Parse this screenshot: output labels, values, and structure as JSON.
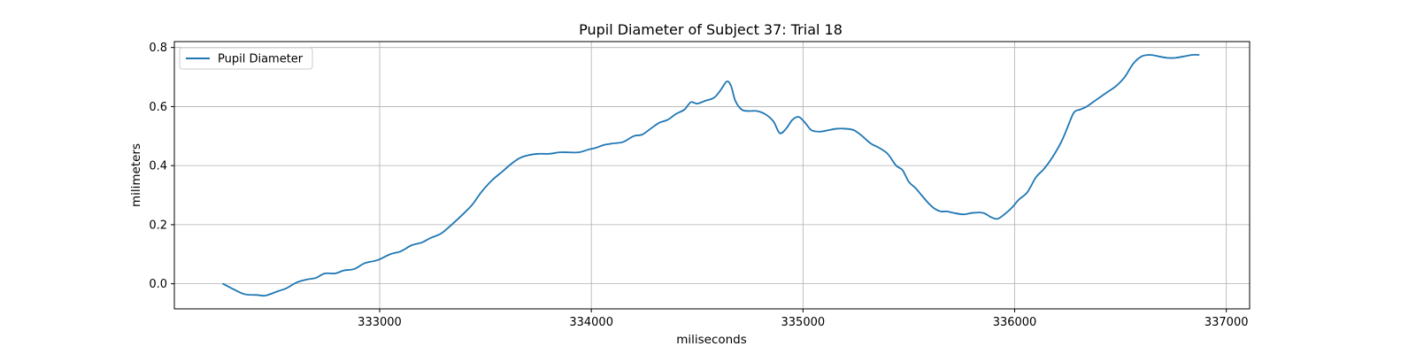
{
  "chart_data": {
    "type": "line",
    "title": "Pupil Diameter of Subject 37: Trial 18",
    "xlabel": "miliseconds",
    "ylabel": "milimeters",
    "xlim": [
      332030,
      337110
    ],
    "ylim": [
      -0.085,
      0.82
    ],
    "xticks": [
      333000,
      334000,
      335000,
      336000,
      337000
    ],
    "xtick_labels": [
      "333000",
      "334000",
      "335000",
      "336000",
      "337000"
    ],
    "yticks": [
      0.0,
      0.2,
      0.4,
      0.6,
      0.8
    ],
    "ytick_labels": [
      "0.0",
      "0.2",
      "0.4",
      "0.6",
      "0.8"
    ],
    "grid": true,
    "legend": "top-left",
    "series": [
      {
        "name": "Pupil Diameter",
        "color": "#1f77b4",
        "x": [
          332260,
          332300,
          332360,
          332420,
          332460,
          332520,
          332560,
          332610,
          332660,
          332700,
          332740,
          332790,
          332830,
          332880,
          332930,
          332990,
          333050,
          333100,
          333150,
          333200,
          333240,
          333290,
          333340,
          333400,
          333440,
          333480,
          333530,
          333580,
          333620,
          333660,
          333700,
          333750,
          333800,
          333850,
          333890,
          333940,
          333990,
          334020,
          334060,
          334100,
          334150,
          334200,
          334240,
          334280,
          334320,
          334360,
          334400,
          334440,
          334470,
          334500,
          334540,
          334580,
          334610,
          334640,
          334660,
          334680,
          334710,
          334740,
          334780,
          334820,
          334860,
          334890,
          334920,
          334950,
          334980,
          335010,
          335040,
          335080,
          335120,
          335160,
          335200,
          335240,
          335280,
          335320,
          335360,
          335400,
          335440,
          335470,
          335500,
          335530,
          335560,
          335590,
          335620,
          335650,
          335680,
          335710,
          335760,
          335800,
          335850,
          335890,
          335920,
          335960,
          335990,
          336020,
          336060,
          336100,
          336140,
          336180,
          336220,
          336250,
          336280,
          336310,
          336340,
          336370,
          336400,
          336440,
          336480,
          336520,
          336560,
          336600,
          336640,
          336680,
          336720,
          336760,
          336800,
          336840,
          336870
        ],
        "y": [
          0.0,
          -0.015,
          -0.035,
          -0.038,
          -0.04,
          -0.025,
          -0.015,
          0.005,
          0.015,
          0.02,
          0.035,
          0.035,
          0.045,
          0.05,
          0.07,
          0.08,
          0.1,
          0.11,
          0.13,
          0.14,
          0.155,
          0.17,
          0.2,
          0.24,
          0.27,
          0.31,
          0.35,
          0.38,
          0.405,
          0.425,
          0.435,
          0.44,
          0.44,
          0.445,
          0.445,
          0.445,
          0.455,
          0.46,
          0.47,
          0.475,
          0.48,
          0.5,
          0.505,
          0.525,
          0.545,
          0.555,
          0.575,
          0.59,
          0.615,
          0.61,
          0.62,
          0.63,
          0.655,
          0.685,
          0.67,
          0.62,
          0.59,
          0.585,
          0.585,
          0.575,
          0.55,
          0.51,
          0.525,
          0.555,
          0.565,
          0.545,
          0.52,
          0.515,
          0.52,
          0.525,
          0.525,
          0.52,
          0.5,
          0.475,
          0.46,
          0.44,
          0.4,
          0.385,
          0.345,
          0.325,
          0.3,
          0.275,
          0.255,
          0.245,
          0.245,
          0.24,
          0.235,
          0.24,
          0.24,
          0.225,
          0.22,
          0.24,
          0.26,
          0.285,
          0.31,
          0.36,
          0.39,
          0.43,
          0.48,
          0.53,
          0.58,
          0.59,
          0.6,
          0.615,
          0.63,
          0.65,
          0.67,
          0.7,
          0.745,
          0.77,
          0.775,
          0.77,
          0.765,
          0.765,
          0.77,
          0.775,
          0.775
        ]
      }
    ]
  }
}
